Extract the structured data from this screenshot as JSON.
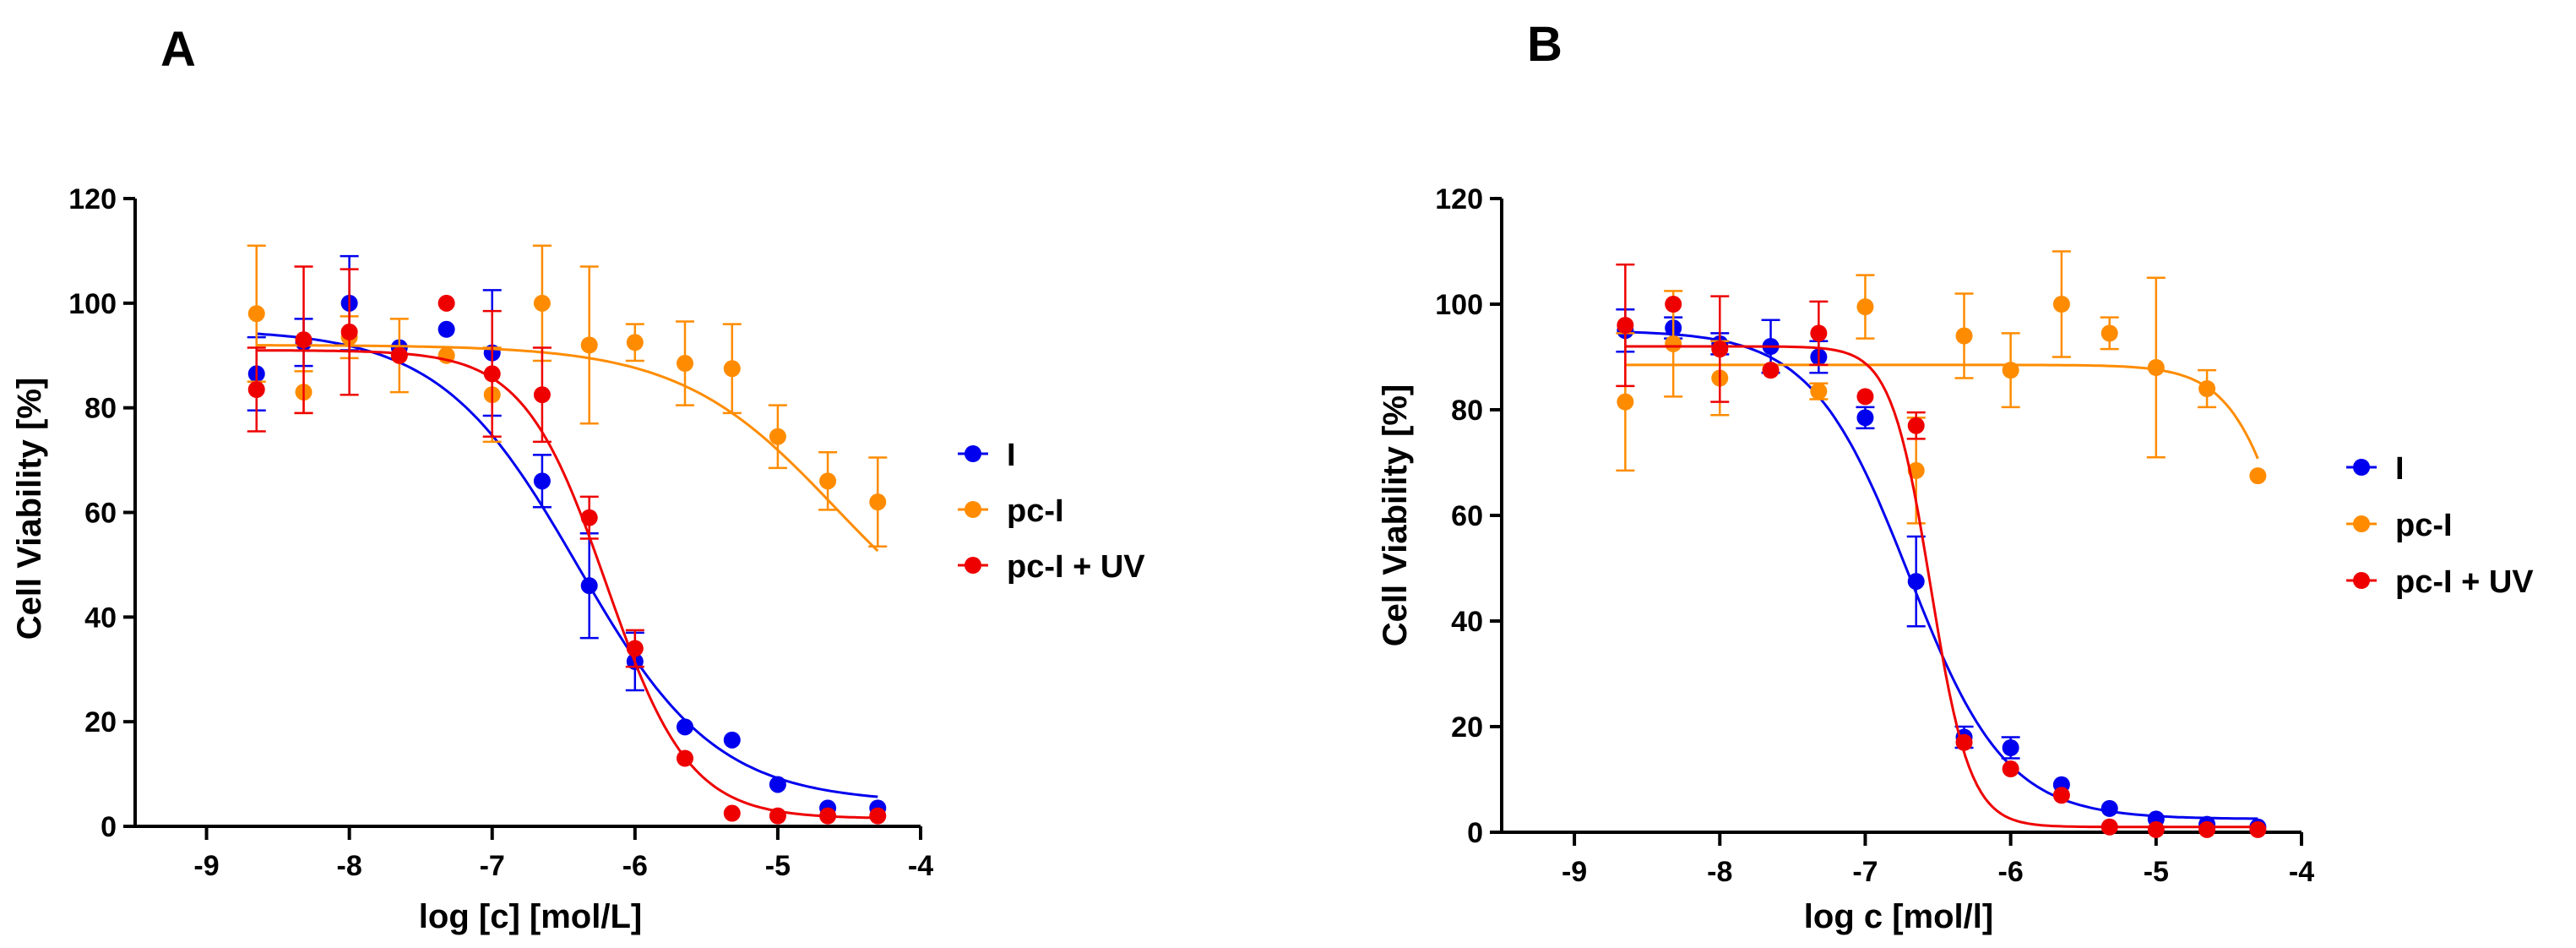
{
  "chart_data": [
    {
      "type": "scatter",
      "panel_label": "A",
      "xlabel": "log [c] [mol/L]",
      "ylabel": "Cell Viability [%]",
      "xlim": [
        -9.5,
        -4
      ],
      "ylim": [
        0,
        120
      ],
      "xticks": [
        -9,
        -8,
        -7,
        -6,
        -5,
        -4
      ],
      "yticks": [
        0,
        20,
        40,
        60,
        80,
        100,
        120
      ],
      "xtick_labels": [
        "-9",
        "-8",
        "-7",
        "-6",
        "-5",
        "-4"
      ],
      "ytick_labels": [
        "0",
        "20",
        "40",
        "60",
        "80",
        "100",
        "120"
      ],
      "legend_position": "right",
      "series": [
        {
          "name": "I",
          "color": "#0000ee",
          "x": [
            -8.65,
            -8.32,
            -8.0,
            -7.65,
            -7.32,
            -7.0,
            -6.65,
            -6.32,
            -6.0,
            -5.65,
            -5.32,
            -5.0,
            -4.65,
            -4.3
          ],
          "y": [
            86.5,
            92.5,
            100,
            91.5,
            95,
            90.5,
            66,
            46,
            31.5,
            19,
            16.5,
            8,
            3.5,
            3.5
          ],
          "err": [
            7,
            4.5,
            9,
            0,
            0,
            12,
            5,
            10,
            5.5,
            0,
            0,
            0,
            0,
            0
          ],
          "fit": {
            "top": 95,
            "bottom": 4.5,
            "logEC50": -6.4,
            "hill": 0.9
          }
        },
        {
          "name": "pc-I",
          "color": "#ff8c00",
          "x": [
            -8.65,
            -8.32,
            -8.0,
            -7.65,
            -7.32,
            -7.0,
            -6.65,
            -6.32,
            -6.0,
            -5.65,
            -5.32,
            -5.0,
            -4.65,
            -4.3
          ],
          "y": [
            98,
            83,
            93.5,
            90,
            90,
            82.5,
            100,
            92,
            92.5,
            88.5,
            87.5,
            74.5,
            66,
            62
          ],
          "err": [
            13,
            4,
            4,
            7,
            0,
            9,
            11,
            15,
            3.5,
            8,
            8.5,
            6,
            5.5,
            8.5
          ],
          "fit": {
            "top": 92,
            "bottom": 30,
            "logEC50": -4.6,
            "hill": 0.8
          }
        },
        {
          "name": "pc-I + UV",
          "color": "#ee0000",
          "x": [
            -8.65,
            -8.32,
            -8.0,
            -7.65,
            -7.32,
            -7.0,
            -6.65,
            -6.32,
            -6.0,
            -5.65,
            -5.32,
            -5.0,
            -4.65,
            -4.3
          ],
          "y": [
            83.5,
            93,
            94.5,
            90,
            100,
            86.5,
            82.5,
            59,
            34,
            13,
            2.5,
            2,
            2,
            2
          ],
          "err": [
            8,
            14,
            12,
            0,
            0,
            12,
            9,
            4,
            3.5,
            0,
            0,
            0,
            0,
            0
          ],
          "fit": {
            "top": 91,
            "bottom": 1.5,
            "logEC50": -6.2,
            "hill": 1.5
          }
        }
      ]
    },
    {
      "type": "scatter",
      "panel_label": "B",
      "xlabel": "log c [mol/l]",
      "ylabel": "Cell Viability [%]",
      "xlim": [
        -9.5,
        -4
      ],
      "ylim": [
        0,
        120
      ],
      "xticks": [
        -9,
        -8,
        -7,
        -6,
        -5,
        -4
      ],
      "yticks": [
        0,
        20,
        40,
        60,
        80,
        100,
        120
      ],
      "xtick_labels": [
        "-9",
        "-8",
        "-7",
        "-6",
        "-5",
        "-4"
      ],
      "ytick_labels": [
        "0",
        "20",
        "40",
        "60",
        "80",
        "100",
        "120"
      ],
      "legend_position": "right",
      "series": [
        {
          "name": "I",
          "color": "#0000ee",
          "x": [
            -8.65,
            -8.32,
            -8.0,
            -7.65,
            -7.32,
            -7.0,
            -6.65,
            -6.32,
            -6.0,
            -5.65,
            -5.32,
            -5.0,
            -4.65,
            -4.3
          ],
          "y": [
            95,
            95.5,
            92.5,
            92,
            90,
            78.5,
            47.5,
            18,
            16,
            9,
            4.5,
            2.5,
            1.5,
            1
          ],
          "err": [
            4,
            2,
            2,
            5,
            3,
            2,
            8.5,
            2,
            2,
            0,
            0,
            0,
            0,
            0
          ],
          "fit": {
            "top": 95,
            "bottom": 2.5,
            "logEC50": -6.7,
            "hill": 1.3
          }
        },
        {
          "name": "pc-I",
          "color": "#ff8c00",
          "x": [
            -8.65,
            -8.32,
            -8.0,
            -7.65,
            -7.32,
            -7.0,
            -6.65,
            -6.32,
            -6.0,
            -5.65,
            -5.32,
            -5.0,
            -4.65,
            -4.3
          ],
          "y": [
            81.5,
            92.5,
            86,
            87.5,
            83.5,
            99.5,
            68.5,
            94,
            87.5,
            100,
            94.5,
            88,
            84,
            67.5
          ],
          "err": [
            13,
            10,
            7,
            0,
            1.5,
            6,
            10,
            8,
            7,
            10,
            3,
            17,
            3.5,
            0
          ],
          "fit": {
            "top": 88.5,
            "bottom": 0,
            "logEC50": -4.0,
            "hill": 2.0
          }
        },
        {
          "name": "pc-I + UV",
          "color": "#ee0000",
          "x": [
            -8.65,
            -8.32,
            -8.0,
            -7.65,
            -7.32,
            -7.0,
            -6.65,
            -6.32,
            -6.0,
            -5.65,
            -5.32,
            -5.0,
            -4.65,
            -4.3
          ],
          "y": [
            96,
            100,
            91.5,
            87.5,
            94.5,
            82.5,
            77,
            17,
            12,
            7,
            1,
            0.5,
            0.5,
            0.5
          ],
          "err": [
            11.5,
            0,
            10,
            0,
            6,
            0,
            2.5,
            0,
            0,
            0,
            0,
            0,
            0,
            0
          ],
          "fit": {
            "top": 92,
            "bottom": 1,
            "logEC50": -6.55,
            "hill": 3.2
          }
        }
      ]
    }
  ]
}
